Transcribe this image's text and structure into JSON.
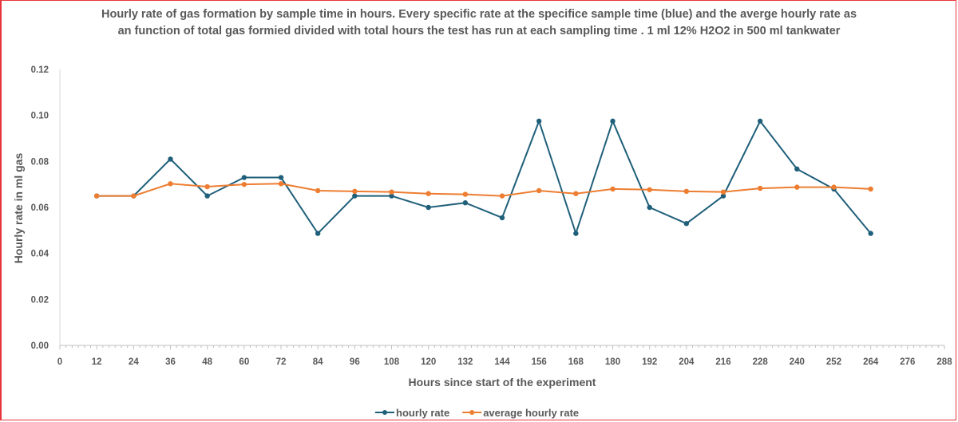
{
  "chart_data": {
    "type": "line",
    "title": "Hourly rate of gas formation by sample time in hours. Every specific rate at the specifice sample time (blue)  and the averge hourly rate as an function of total gas formied divided with total hours the test has run at each sampling time . 1 ml 12% H2O2 in 500 ml tankwater",
    "xlabel": "Hours since start of the experiment",
    "ylabel": "Hourly rate in ml gas",
    "xlim": [
      0,
      288
    ],
    "ylim": [
      0,
      0.12
    ],
    "x_ticks": [
      0,
      12,
      24,
      36,
      48,
      60,
      72,
      84,
      96,
      108,
      120,
      132,
      144,
      156,
      168,
      180,
      192,
      204,
      216,
      228,
      240,
      252,
      264,
      276,
      288
    ],
    "y_ticks": [
      "0.00",
      "0.02",
      "0.04",
      "0.06",
      "0.08",
      "0.10",
      "0.12"
    ],
    "grid": false,
    "legend_position": "bottom",
    "x": [
      12,
      24,
      36,
      48,
      60,
      72,
      84,
      96,
      108,
      120,
      132,
      144,
      156,
      168,
      180,
      192,
      204,
      216,
      228,
      240,
      252,
      264
    ],
    "series": [
      {
        "name": "hourly rate",
        "color": "#1f5f7a",
        "values": [
          0.065,
          0.065,
          0.081,
          0.065,
          0.073,
          0.073,
          0.0487,
          0.065,
          0.065,
          0.06,
          0.062,
          0.0555,
          0.0975,
          0.0487,
          0.0975,
          0.06,
          0.053,
          0.065,
          0.0975,
          0.0767,
          0.068,
          0.0487
        ]
      },
      {
        "name": "average hourly rate",
        "color": "#ed7d31",
        "values": [
          0.065,
          0.065,
          0.0703,
          0.069,
          0.07,
          0.0703,
          0.0673,
          0.067,
          0.0667,
          0.066,
          0.0657,
          0.065,
          0.0673,
          0.066,
          0.068,
          0.0677,
          0.067,
          0.0667,
          0.0683,
          0.0688,
          0.0688,
          0.068
        ]
      }
    ]
  }
}
